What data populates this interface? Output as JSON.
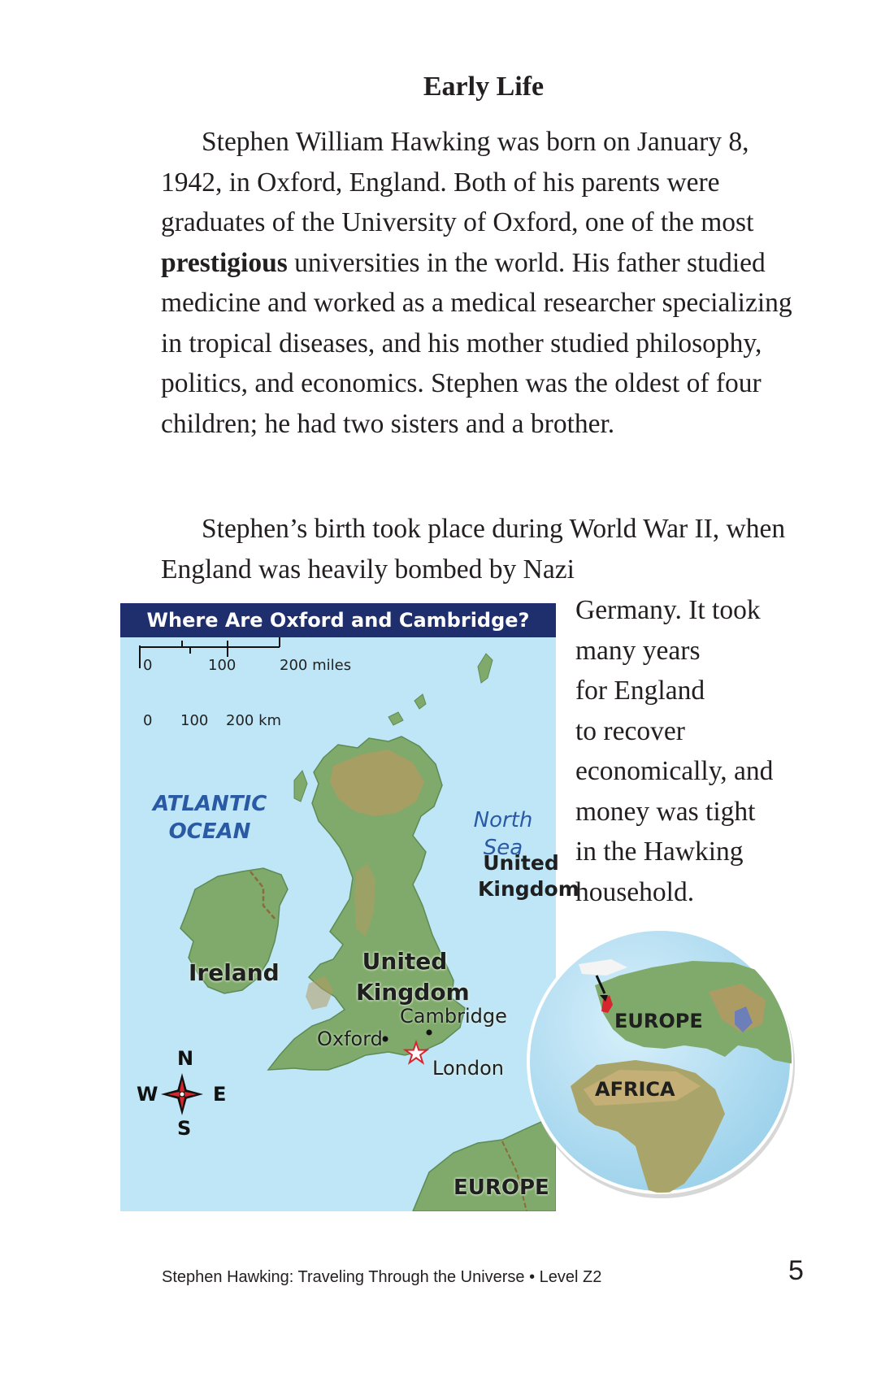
{
  "heading": "Early Life",
  "para1": {
    "part1": "Stephen William Hawking was born on January 8, 1942, in Oxford, England. Both of his parents were graduates of the University of Oxford, one of the most ",
    "bold": "prestigious",
    "part2": " universities in the world. His father studied medicine and worked as a medical researcher specializing in tropical diseases, and his mother studied philosophy, politics, and economics. Stephen was the oldest of four children; he had two sisters and a brother."
  },
  "para2": {
    "top": "Stephen’s birth took place during World War II, when England was heavily bombed by Nazi",
    "side_lines": [
      "Germany. It took",
      "many years",
      "for England",
      "to recover",
      "economically, and",
      "money was tight",
      "in the Hawking",
      "household."
    ]
  },
  "map": {
    "title": "Where Are Oxford and Cambridge?",
    "scale": {
      "miles_labels": [
        "0",
        "100",
        "200 miles"
      ],
      "km_labels": [
        "0",
        "100",
        "200 km"
      ]
    },
    "ocean_label": [
      "ATLANTIC",
      "OCEAN"
    ],
    "sea_label": [
      "North",
      "Sea"
    ],
    "ireland_label": "Ireland",
    "uk_label": [
      "United",
      "Kingdom"
    ],
    "cities": {
      "cambridge": "Cambridge",
      "oxford": "Oxford",
      "london": "London"
    },
    "europe_label": "EUROPE",
    "compass": {
      "n": "N",
      "s": "S",
      "e": "E",
      "w": "W"
    },
    "colors": {
      "water": "#bfe6f7",
      "header": "#1f2f6e",
      "land": "#7faa6b",
      "highland": "#b49a62",
      "star": "#d7262e"
    }
  },
  "globe": {
    "uk_label": [
      "United",
      "Kingdom"
    ],
    "europe_label": "EUROPE",
    "africa_label": "AFRICA"
  },
  "footer": {
    "text": "Stephen Hawking: Traveling Through the Universe • Level Z2",
    "page_number": "5"
  }
}
